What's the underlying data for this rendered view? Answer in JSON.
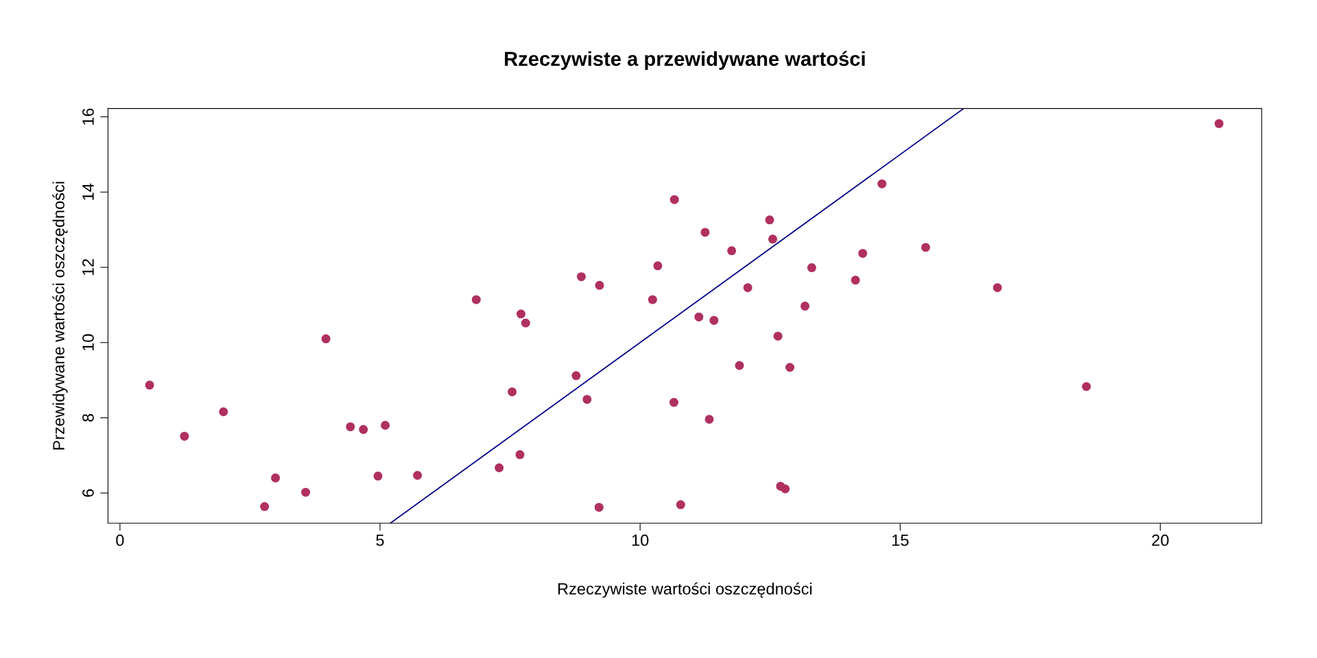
{
  "chart_data": {
    "type": "scatter",
    "title": "Rzeczywiste a przewidywane wartości",
    "xlabel": "Rzeczywiste wartości oszczędności",
    "ylabel": "Przewidywane wartości oszczędności",
    "xlim": [
      -0.23,
      21.95
    ],
    "ylim": [
      5.2,
      16.22
    ],
    "xticks": [
      0,
      5,
      10,
      15,
      20
    ],
    "yticks": [
      6,
      8,
      10,
      12,
      14,
      16
    ],
    "grid": false,
    "legend": false,
    "series": [
      {
        "marker": "circle",
        "color": "#b03060",
        "x": [
          0.57,
          1.24,
          1.99,
          2.78,
          2.99,
          3.57,
          3.96,
          4.43,
          4.68,
          4.96,
          5.1,
          5.72,
          6.85,
          7.29,
          7.54,
          7.69,
          7.71,
          7.8,
          8.77,
          8.87,
          8.98,
          9.21,
          9.22,
          10.24,
          10.34,
          10.65,
          10.66,
          10.78,
          11.13,
          11.25,
          11.33,
          11.42,
          11.76,
          11.91,
          12.07,
          12.49,
          12.55,
          12.65,
          12.7,
          12.79,
          12.88,
          13.17,
          13.3,
          14.14,
          14.28,
          14.65,
          15.49,
          16.87,
          18.58,
          21.13
        ],
        "values": [
          8.87,
          7.51,
          8.16,
          5.64,
          6.4,
          6.02,
          10.1,
          7.76,
          7.69,
          6.45,
          7.8,
          6.47,
          11.14,
          6.67,
          8.69,
          7.02,
          10.76,
          10.52,
          9.12,
          11.75,
          8.49,
          5.62,
          11.52,
          11.14,
          12.04,
          8.41,
          13.8,
          5.69,
          10.68,
          12.93,
          7.96,
          10.59,
          12.44,
          9.39,
          11.46,
          13.26,
          12.75,
          10.17,
          6.18,
          6.11,
          9.34,
          10.97,
          11.99,
          11.66,
          12.37,
          14.22,
          12.53,
          11.46,
          8.83,
          15.82
        ]
      },
      {
        "type": "line",
        "color": "#00008b",
        "x": [
          5.2,
          16.22
        ],
        "values": [
          5.2,
          16.22
        ]
      }
    ]
  }
}
